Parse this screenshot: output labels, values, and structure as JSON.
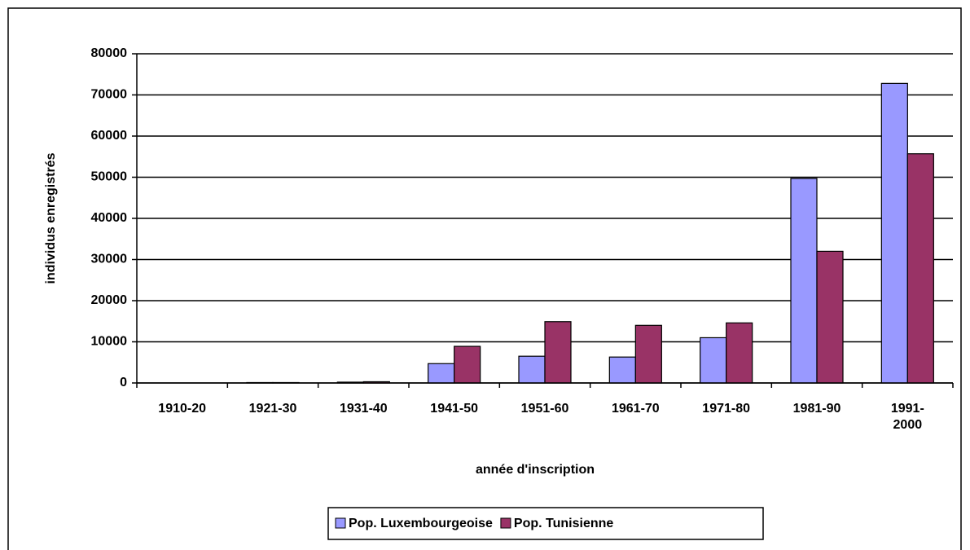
{
  "chart_data": {
    "type": "bar",
    "x_label": "année d'inscription",
    "y_label": "individus enregistrés",
    "categories": [
      "1910-20",
      "1921-30",
      "1931-40",
      "1941-50",
      "1951-60",
      "1961-70",
      "1971-80",
      "1981-90",
      "1991-\n2000"
    ],
    "series": [
      {
        "name": "Pop. Luxembourgeoise",
        "color": "#9999ff",
        "values": [
          0,
          100,
          200,
          4700,
          6500,
          6300,
          11000,
          49700,
          72800
        ]
      },
      {
        "name": "Pop. Tunisienne",
        "color": "#993366",
        "values": [
          0,
          100,
          300,
          8900,
          14900,
          14000,
          14600,
          32000,
          55700
        ]
      }
    ],
    "ylim": [
      0,
      80000
    ],
    "yticks": [
      0,
      10000,
      20000,
      30000,
      40000,
      50000,
      60000,
      70000,
      80000
    ],
    "grid": true
  }
}
